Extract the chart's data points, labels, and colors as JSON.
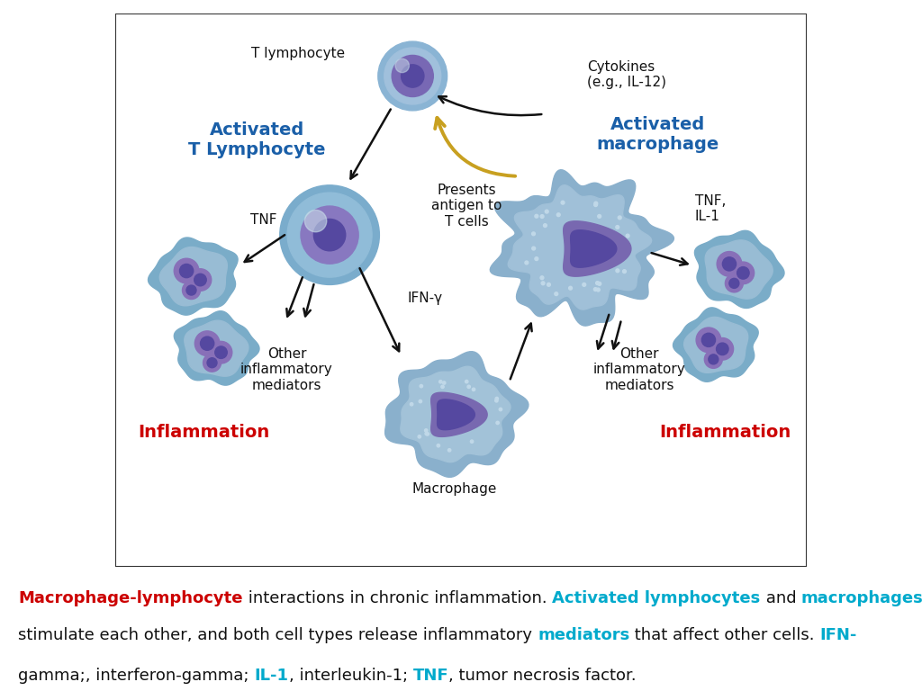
{
  "title": "",
  "diagram_bg": "#ffffff",
  "border_color": "#333333",
  "label_activated_lymphocyte": "Activated\nT Lymphocyte",
  "label_activated_macro": "Activated\nmacrophage",
  "label_t_lymphocyte": "T lymphocyte",
  "label_cytokines": "Cytokines\n(e.g., IL-12)",
  "label_presents": "Presents\nantigen to\nT cells",
  "label_tnf_left": "TNF",
  "label_ifn": "IFN-γ",
  "label_other_left": "Other\ninflammatory\nmediators",
  "label_inflammation_left": "Inflammation",
  "label_macrophage": "Macrophage",
  "label_tnf_right": "TNF,\nIL-1",
  "label_other_right": "Other\ninflammatory\nmediators",
  "label_inflammation_right": "Inflammation",
  "blue_label_color": "#1a5fa8",
  "red_label_color": "#cc0000",
  "black_label_color": "#111111",
  "arrow_color": "#111111",
  "yellow_arrow_color": "#daa520",
  "caption_line1": [
    [
      "Macrophage-lymphocyte",
      "#cc0000",
      true
    ],
    [
      " interactions in chronic inflammation. ",
      "#111111",
      false
    ],
    [
      "Activated lymphocytes",
      "#00aacc",
      true
    ],
    [
      " and ",
      "#111111",
      false
    ],
    [
      "macrophages",
      "#00aacc",
      true
    ]
  ],
  "caption_line2": [
    [
      "stimulate each other, and both cell types release inflammatory ",
      "#111111",
      false
    ],
    [
      "mediators",
      "#00aacc",
      true
    ],
    [
      " that affect other cells. ",
      "#111111",
      false
    ],
    [
      "IFN-",
      "#00aacc",
      true
    ]
  ],
  "caption_line2_end": [
    "gamma;",
    "#111111",
    false
  ],
  "caption_line3": [
    [
      "gamma;, interferon-gamma; ",
      "#111111",
      false
    ],
    [
      "IL-1",
      "#00aacc",
      true
    ],
    [
      ", interleukin-1; ",
      "#111111",
      false
    ],
    [
      "TNF",
      "#00aacc",
      true
    ],
    [
      ", tumor necrosis factor.",
      "#111111",
      false
    ]
  ]
}
